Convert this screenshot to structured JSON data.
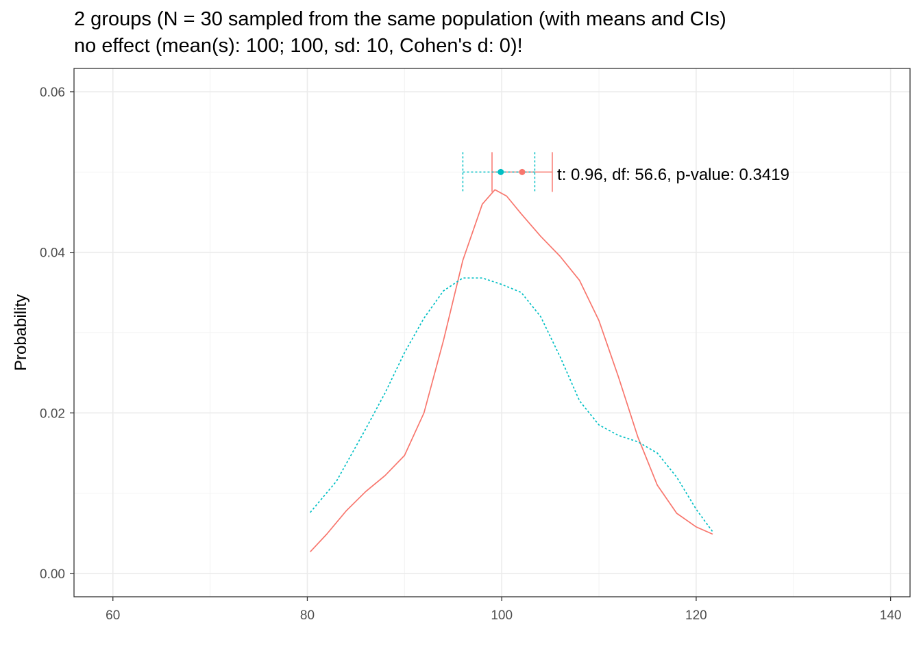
{
  "chart_data": {
    "type": "line",
    "title_line1": "2 groups (N = 30 sampled from the same population (with means and CIs)",
    "title_line2": "no effect (mean(s): 100; 100, sd: 10, Cohen's d: 0)!",
    "xlabel": "",
    "ylabel": "Probability",
    "xlim": [
      56,
      142
    ],
    "ylim": [
      -0.0029,
      0.0629
    ],
    "x_ticks": [
      60,
      80,
      100,
      120,
      140
    ],
    "x_tick_labels": [
      "60",
      "80",
      "100",
      "120",
      "140"
    ],
    "y_ticks": [
      0.0,
      0.02,
      0.04,
      0.06
    ],
    "y_tick_labels": [
      "0.00",
      "0.02",
      "0.04",
      "0.06"
    ],
    "grid": true,
    "colors": {
      "group1": "#F8766D",
      "group2": "#00BFC4"
    },
    "series": [
      {
        "name": "group1",
        "linetype": "solid",
        "x": [
          80.3,
          82,
          84,
          86,
          88,
          90,
          92,
          94,
          96,
          98,
          99.3,
          100.5,
          102,
          104,
          106,
          108,
          110,
          112,
          114,
          116,
          118,
          120,
          121.7
        ],
        "y": [
          0.0027,
          0.0049,
          0.0078,
          0.0102,
          0.0122,
          0.0147,
          0.02,
          0.029,
          0.039,
          0.046,
          0.0478,
          0.047,
          0.0448,
          0.042,
          0.0395,
          0.0365,
          0.0315,
          0.0245,
          0.017,
          0.011,
          0.0075,
          0.0058,
          0.0049
        ]
      },
      {
        "name": "group2",
        "linetype": "dotted",
        "x": [
          80.3,
          83,
          86,
          88,
          90,
          92,
          94,
          96,
          98,
          100,
          102,
          104,
          106,
          108,
          110,
          112,
          114,
          116,
          118,
          120,
          121.7
        ],
        "y": [
          0.0076,
          0.0115,
          0.018,
          0.0225,
          0.0275,
          0.0318,
          0.0352,
          0.0368,
          0.0368,
          0.036,
          0.035,
          0.032,
          0.027,
          0.0215,
          0.0185,
          0.0172,
          0.0164,
          0.015,
          0.012,
          0.008,
          0.0052
        ]
      }
    ],
    "intervals": [
      {
        "name": "group1",
        "mean": 102.1,
        "lower": 99.0,
        "upper": 105.2,
        "y": 0.05,
        "linetype": "solid"
      },
      {
        "name": "group2",
        "mean": 99.9,
        "lower": 96.0,
        "upper": 103.4,
        "y": 0.05,
        "linetype": "dotted"
      }
    ],
    "annotation": {
      "text": "t: 0.96, df: 56.6, p-value: 0.3419",
      "x": 105.7,
      "y": 0.0497
    }
  }
}
